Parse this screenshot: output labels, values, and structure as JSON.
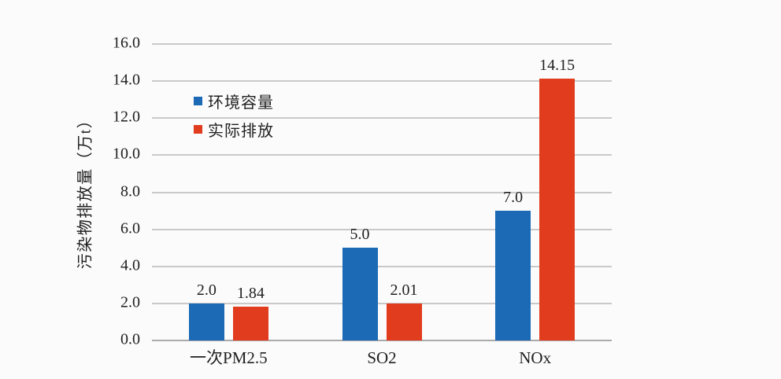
{
  "chart_data": {
    "type": "bar",
    "title": "",
    "categories": [
      "一次PM2.5",
      "SO2",
      "NOx"
    ],
    "series": [
      {
        "name": "环境容量",
        "color": "#1c6ab5",
        "values": [
          2.0,
          5.0,
          7.0
        ],
        "value_labels": [
          "2.0",
          "5.0",
          "7.0"
        ]
      },
      {
        "name": "实际排放",
        "color": "#e23c1e",
        "values": [
          1.84,
          2.01,
          14.15
        ],
        "value_labels": [
          "1.84",
          "2.01",
          "14.15"
        ]
      }
    ],
    "xlabel": "",
    "ylabel": "污染物排放量（万t）",
    "ylim": [
      0,
      16
    ],
    "ytick_step": 2,
    "ytick_labels": [
      "0.0",
      "2.0",
      "4.0",
      "6.0",
      "8.0",
      "10.0",
      "12.0",
      "14.0",
      "16.0"
    ],
    "grid": true,
    "legend_position": "upper-left-inside"
  },
  "colors": {
    "series_blue": "#1c6ab5",
    "series_red": "#e23c1e",
    "gridline": "#c9c9c9",
    "axis_line": "#ababab",
    "text": "#1f1f1f",
    "background": "#fbfbfb"
  }
}
